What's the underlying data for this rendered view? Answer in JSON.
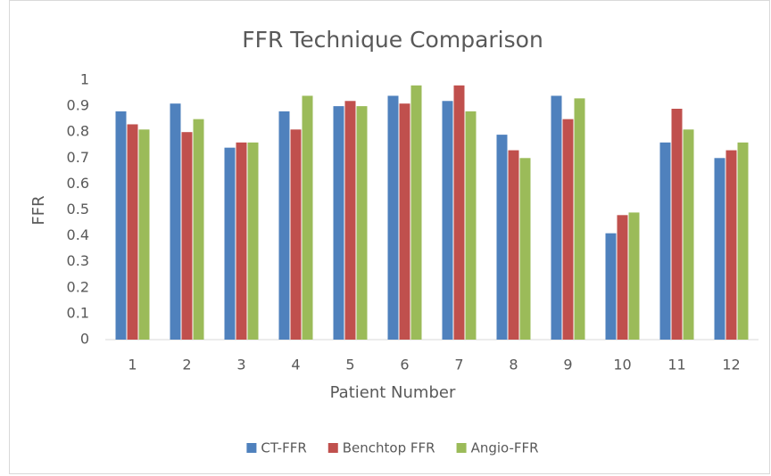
{
  "chart_data": {
    "type": "bar",
    "title": "FFR Technique Comparison",
    "x_label": "Patient Number",
    "y_label": "FFR",
    "categories": [
      "1",
      "2",
      "3",
      "4",
      "5",
      "6",
      "7",
      "8",
      "9",
      "10",
      "11",
      "12"
    ],
    "series": [
      {
        "name": "CT-FFR",
        "color": "#4f81bd",
        "values": [
          0.88,
          0.91,
          0.74,
          0.88,
          0.9,
          0.94,
          0.92,
          0.79,
          0.94,
          0.41,
          0.76,
          0.7
        ]
      },
      {
        "name": "Benchtop FFR",
        "color": "#c0504d",
        "values": [
          0.83,
          0.8,
          0.76,
          0.81,
          0.92,
          0.91,
          0.98,
          0.73,
          0.85,
          0.48,
          0.89,
          0.73
        ]
      },
      {
        "name": "Angio-FFR",
        "color": "#9bbb59",
        "values": [
          0.81,
          0.85,
          0.76,
          0.94,
          0.9,
          0.98,
          0.88,
          0.7,
          0.93,
          0.49,
          0.81,
          0.76
        ]
      }
    ],
    "ylim": [
      0,
      1
    ],
    "yticks": [
      0,
      0.1,
      0.2,
      0.3,
      0.4,
      0.5,
      0.6,
      0.7,
      0.8,
      0.9,
      1
    ],
    "grid": false,
    "legend": "bottom"
  }
}
